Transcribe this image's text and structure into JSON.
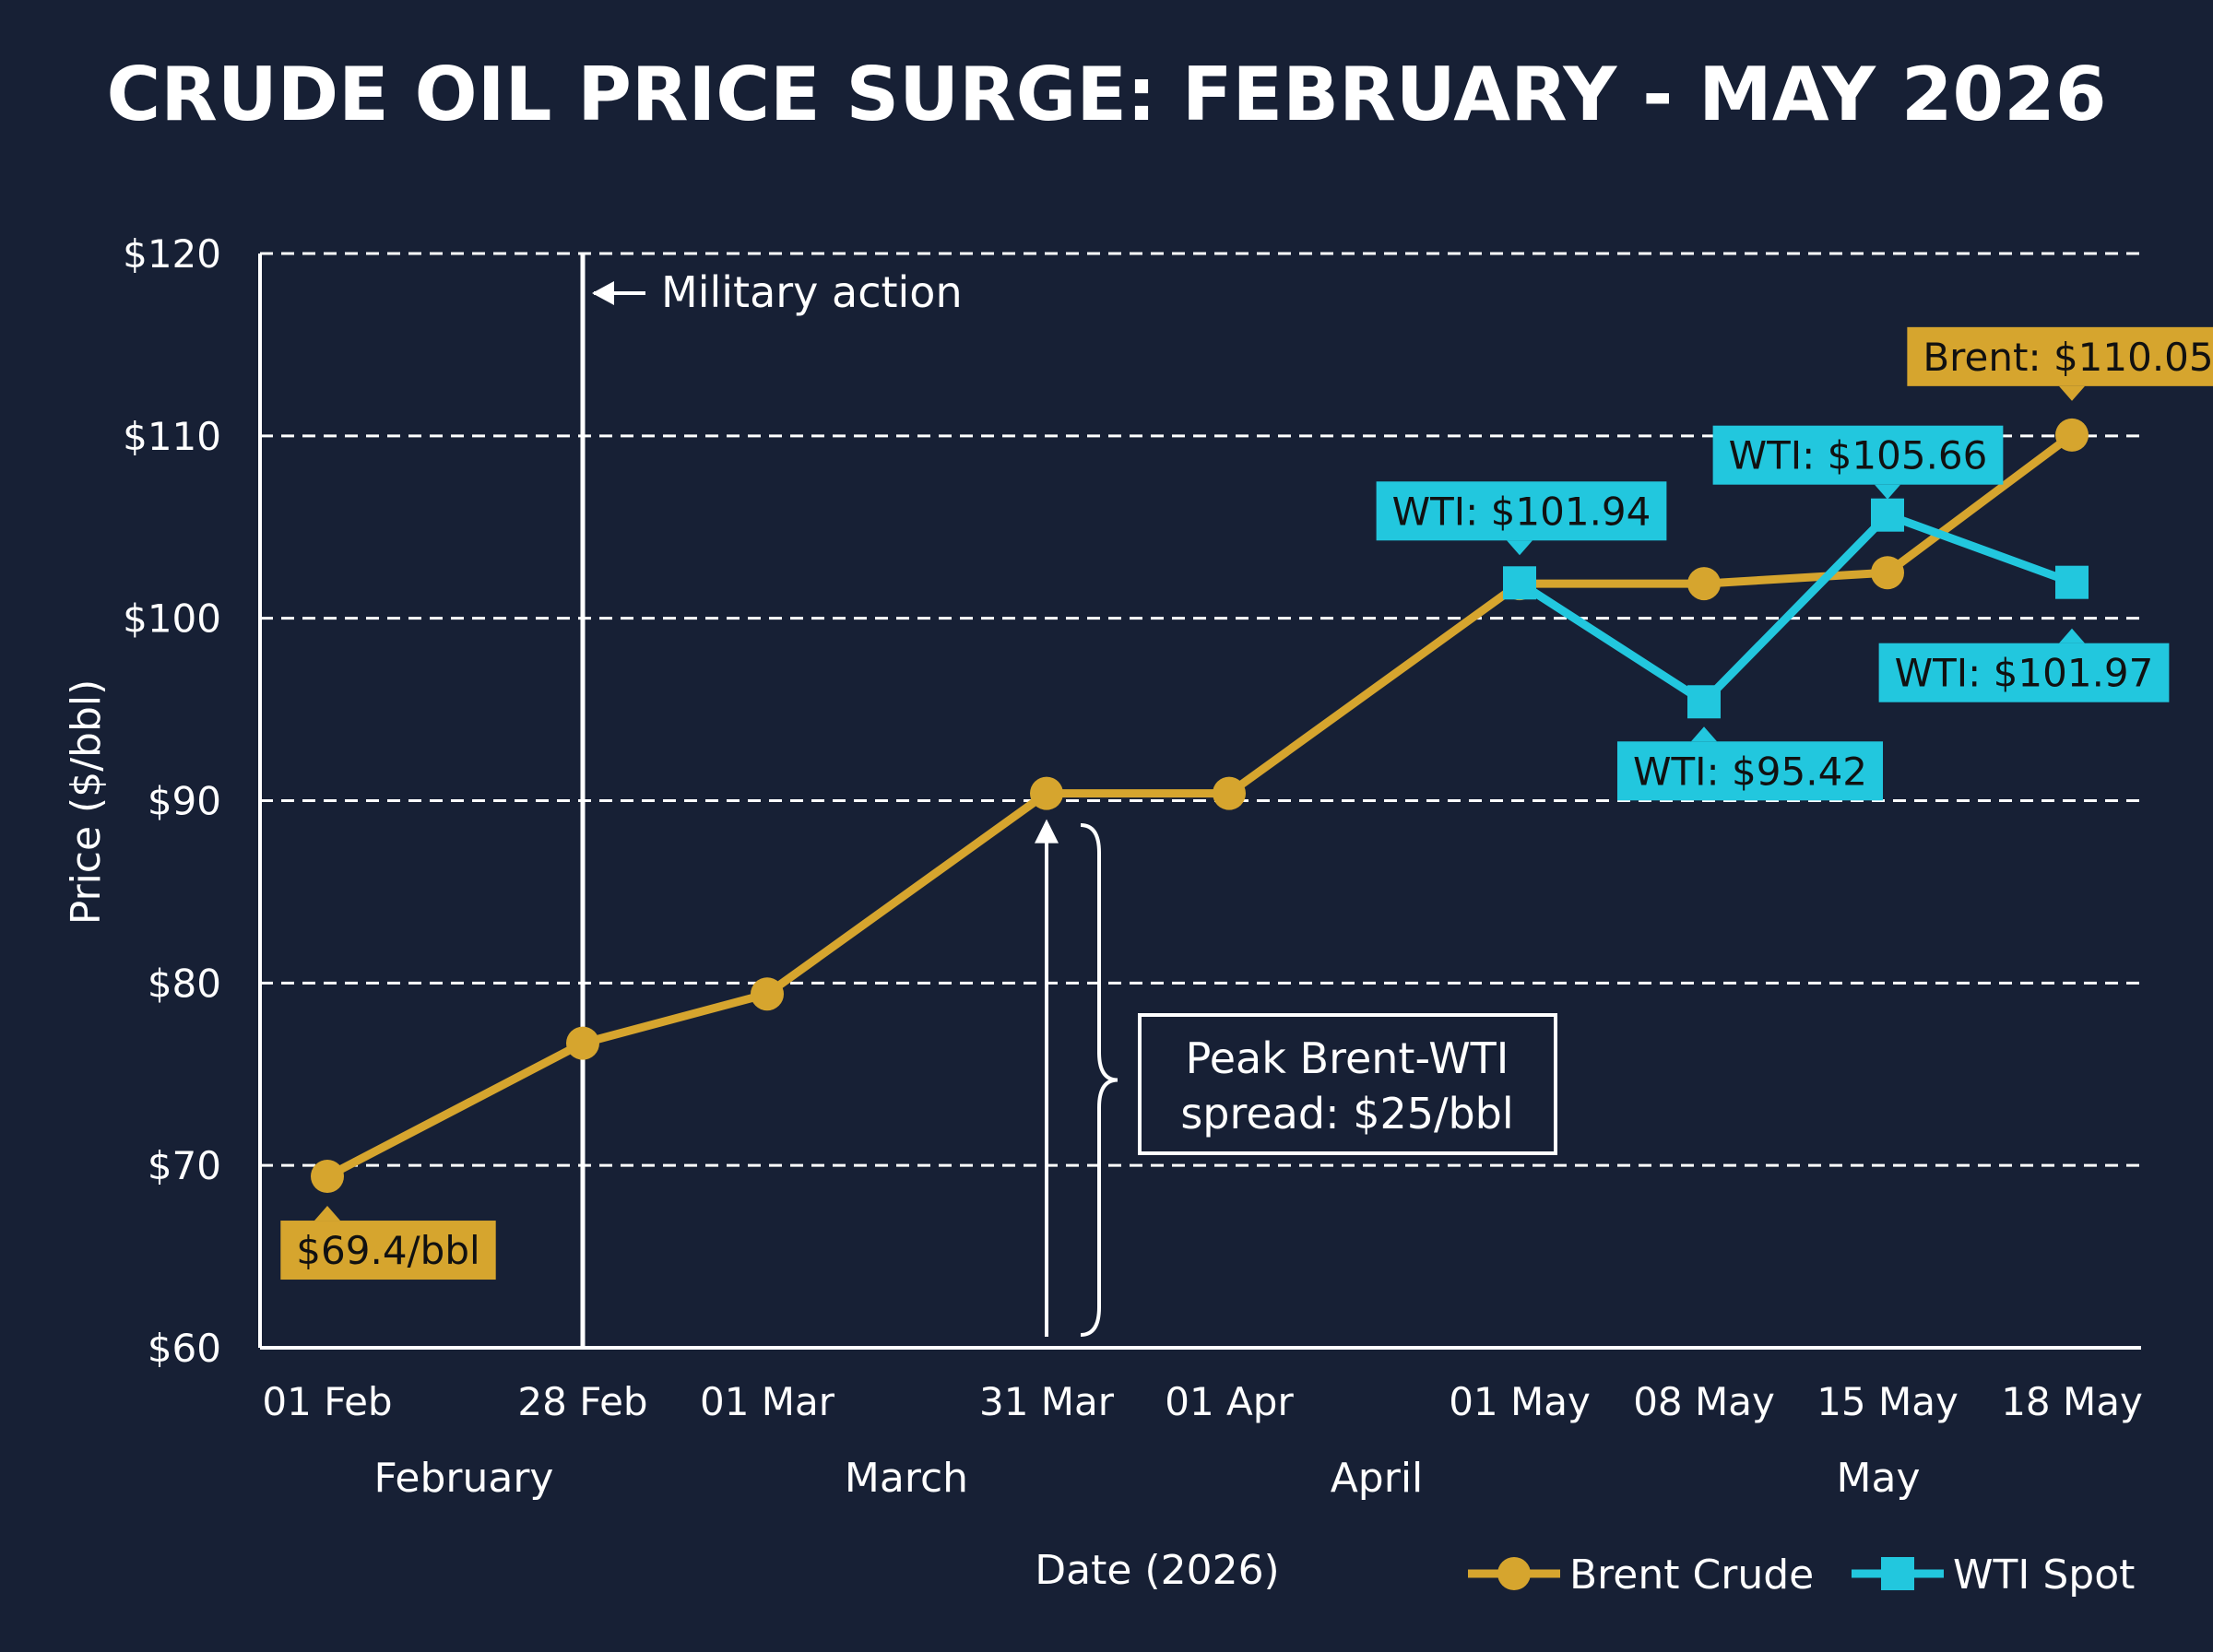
{
  "colors": {
    "background": "#172035",
    "brent": "#D6A52E",
    "wti": "#22C7DE",
    "grid": "#ffffff",
    "text": "#ffffff",
    "label_text": "#111111"
  },
  "chart_data": {
    "type": "line",
    "title": "CRUDE OIL PRICE SURGE: FEBRUARY - MAY 2026",
    "xlabel": "Date (2026)",
    "ylabel": "Price ($/bbl)",
    "ylim": [
      60,
      120
    ],
    "yticks": [
      60,
      70,
      80,
      90,
      100,
      110,
      120
    ],
    "ytick_labels": [
      "$60",
      "$70",
      "$80",
      "$90",
      "$100",
      "$110",
      "$120"
    ],
    "grid": true,
    "legend_position": "bottom-right",
    "categories": [
      "01 Feb",
      "28 Feb",
      "01 Mar",
      "31 Mar",
      "01 Apr",
      "01 May",
      "08 May",
      "15 May",
      "18 May"
    ],
    "month_labels": [
      {
        "label": "February",
        "from": 0,
        "to": 1
      },
      {
        "label": "March",
        "from": 2,
        "to": 3
      },
      {
        "label": "April",
        "from": 4,
        "to": 5
      },
      {
        "label": "May",
        "from": 5,
        "to": 8
      }
    ],
    "series": [
      {
        "name": "Brent Crude",
        "marker": "circle",
        "color": "#D6A52E",
        "values": [
          69.4,
          76.7,
          79.4,
          90.4,
          90.4,
          101.9,
          101.9,
          102.5,
          110.05
        ]
      },
      {
        "name": "WTI Spot",
        "marker": "square",
        "color": "#22C7DE",
        "values": [
          null,
          null,
          null,
          null,
          null,
          101.94,
          95.42,
          105.66,
          101.97
        ]
      }
    ],
    "data_labels": [
      {
        "series": 0,
        "index": 0,
        "text": "$69.4/bbl",
        "position": "below"
      },
      {
        "series": 0,
        "index": 8,
        "text": "Brent: $110.05",
        "position": "above"
      },
      {
        "series": 1,
        "index": 5,
        "text": "WTI: $101.94",
        "position": "above"
      },
      {
        "series": 1,
        "index": 6,
        "text": "WTI: $95.42",
        "position": "below"
      },
      {
        "series": 1,
        "index": 7,
        "text": "WTI: $105.66",
        "position": "above"
      },
      {
        "series": 1,
        "index": 8,
        "text": "WTI: $101.97",
        "position": "below"
      }
    ],
    "annotations": {
      "event_marker": {
        "index": 1,
        "text": "Military action"
      },
      "spread": {
        "index": 3,
        "from_value": 60,
        "to_value": 90.4,
        "lines": [
          "Peak Brent-WTI",
          "spread: $25/bbl"
        ]
      }
    }
  }
}
